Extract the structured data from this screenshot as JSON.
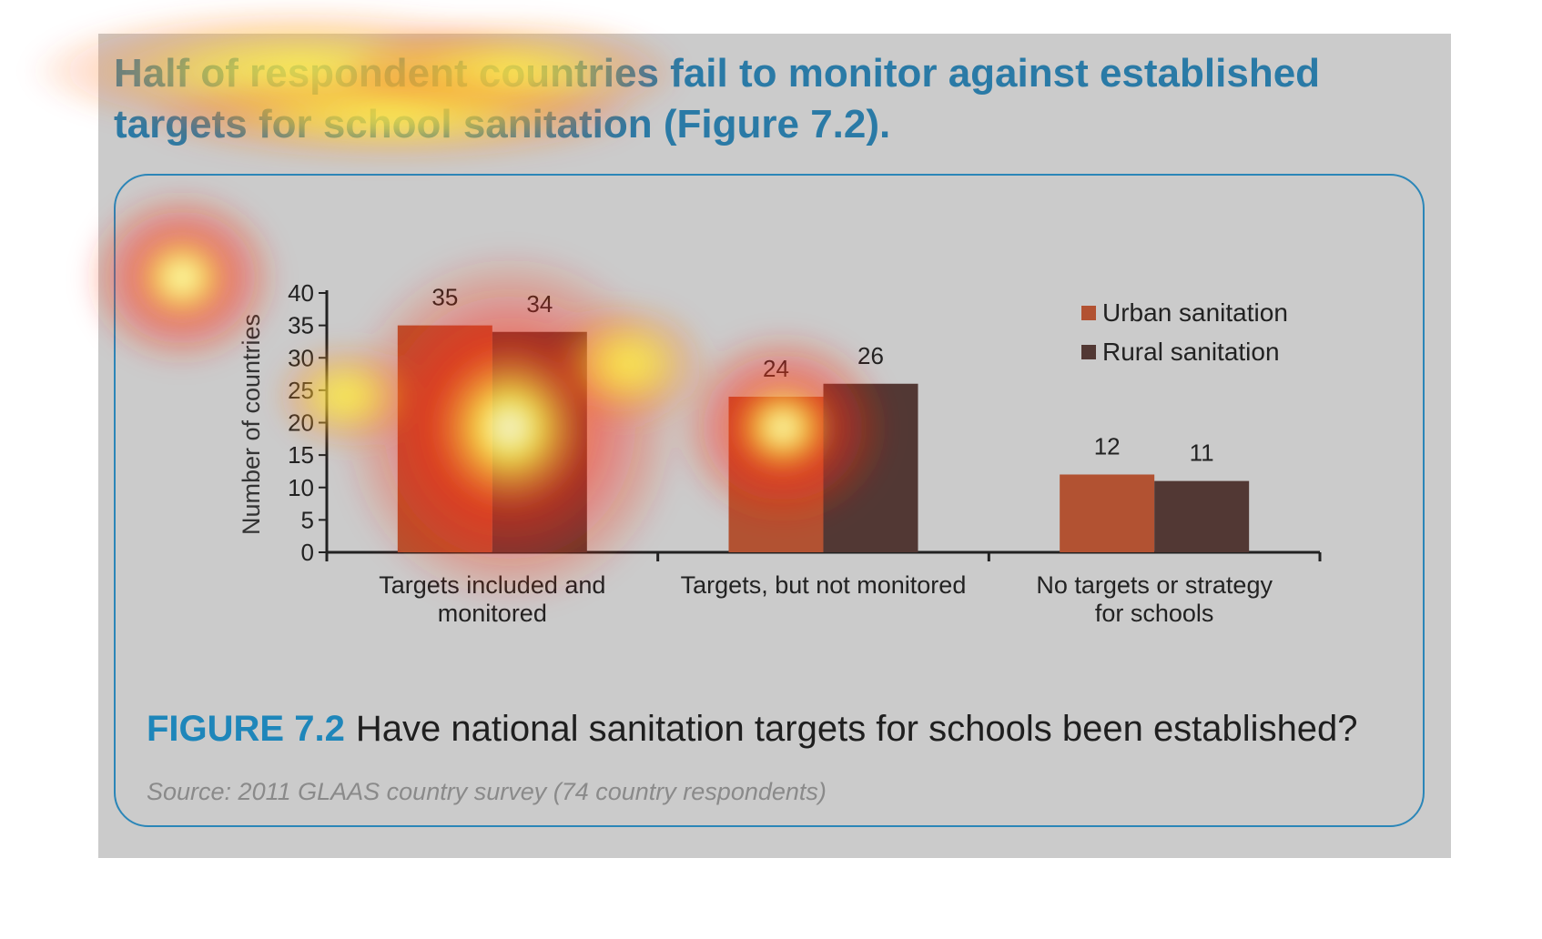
{
  "heading": {
    "text": "Half of respondent countries fail to monitor against established targets for school sanitation (Figure 7.2)."
  },
  "caption": {
    "figure_label": "FIGURE 7.2",
    "text": "Have national sanitation targets for schools been established?"
  },
  "source": "Source: 2011 GLAAS country survey (74 country respondents)",
  "colors": {
    "urban": "#b25232",
    "rural": "#523834",
    "panel_bg": "#cbcbcb",
    "box_border": "#2b86b8",
    "heading_blue": "#2a7aa6"
  },
  "heatmap": {
    "hotspots": [
      {
        "label": "heading-left",
        "intensity": 0.95
      },
      {
        "label": "y-axis-title",
        "intensity": 0.9
      },
      {
        "label": "bar-group-1-rural",
        "intensity": 1.0
      },
      {
        "label": "bar-group-2-urban-rural",
        "intensity": 0.9
      }
    ]
  },
  "chart_data": {
    "type": "bar",
    "categories": [
      "Targets included and monitored",
      "Targets, but not monitored",
      "No targets or strategy for schools"
    ],
    "category_lines": [
      [
        "Targets included and",
        "monitored"
      ],
      [
        "Targets, but not monitored"
      ],
      [
        "No targets or strategy",
        "for schools"
      ]
    ],
    "series": [
      {
        "name": "Urban sanitation",
        "values": [
          35,
          24,
          12
        ],
        "color": "#b25232"
      },
      {
        "name": "Rural sanitation",
        "values": [
          34,
          26,
          11
        ],
        "color": "#523834"
      }
    ],
    "ylabel": "Number of countries",
    "xlabel": "",
    "ylim": [
      0,
      40
    ],
    "yticks": [
      0,
      5,
      10,
      15,
      20,
      25,
      30,
      35,
      40
    ],
    "legend_position": "top-right",
    "grid": false,
    "data_labels": true
  }
}
